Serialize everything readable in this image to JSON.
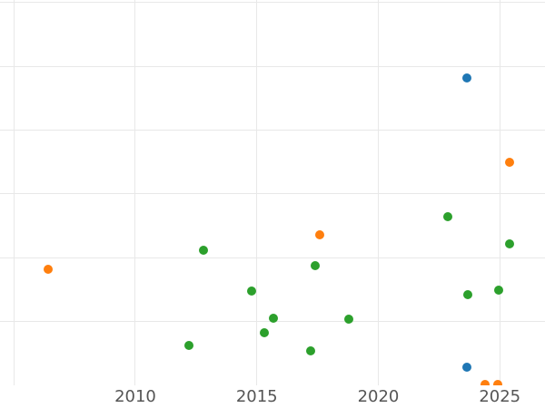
{
  "chart_data": {
    "type": "scatter",
    "title": "",
    "xlabel": "",
    "ylabel": "",
    "grid": true,
    "legend": "none",
    "x_tick_labels": [
      "2010",
      "2015",
      "2020",
      "2025"
    ],
    "x_tick_years": [
      2010,
      2015,
      2020,
      2025
    ],
    "x_gridline_years": [
      2005,
      2010,
      2015,
      2020,
      2025
    ],
    "y_gridline_values": [
      1,
      2,
      3,
      4,
      5,
      6
    ],
    "xlim": [
      2004.43,
      2026.86
    ],
    "ylim": [
      0,
      6.04
    ],
    "y_axis_note": "no y-axis tick labels visible; y values estimated in gridline units above bottom edge",
    "marker_diameter_px": 10,
    "series": [
      {
        "name": "series-blue",
        "color": "#1f77b4",
        "points": [
          [
            2023.65,
            4.82
          ],
          [
            2023.65,
            0.28
          ]
        ]
      },
      {
        "name": "series-orange",
        "color": "#ff7f0e",
        "points": [
          [
            2006.4,
            1.82
          ],
          [
            2017.6,
            2.36
          ],
          [
            2025.4,
            3.5
          ],
          [
            2024.4,
            0.01
          ],
          [
            2024.9,
            0.01
          ]
        ]
      },
      {
        "name": "series-green",
        "color": "#2ca02c",
        "points": [
          [
            2012.2,
            0.63
          ],
          [
            2012.8,
            2.12
          ],
          [
            2014.8,
            1.48
          ],
          [
            2015.3,
            0.82
          ],
          [
            2015.7,
            1.05
          ],
          [
            2017.2,
            0.54
          ],
          [
            2017.4,
            1.88
          ],
          [
            2018.8,
            1.04
          ],
          [
            2022.85,
            2.64
          ],
          [
            2023.7,
            1.42
          ],
          [
            2024.95,
            1.49
          ],
          [
            2025.4,
            2.22
          ]
        ]
      }
    ]
  },
  "style": {
    "background": "#ffffff",
    "gridline_color": "#e8e8e8",
    "tick_label_color": "#555555"
  }
}
